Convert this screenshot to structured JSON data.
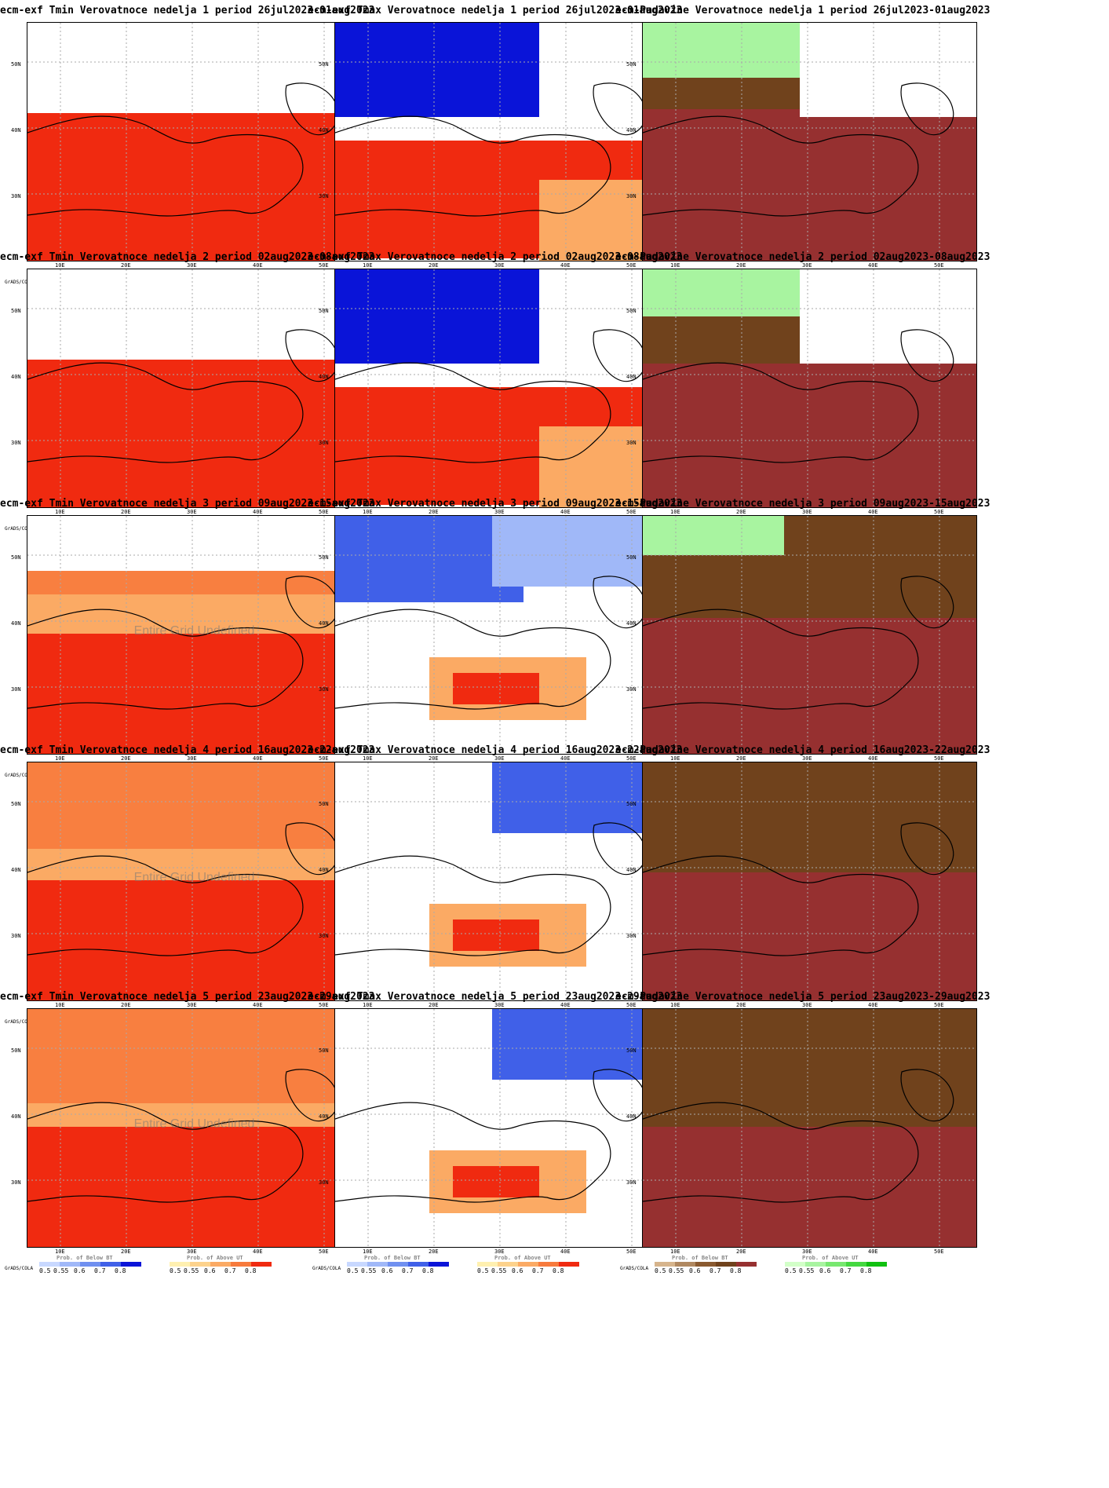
{
  "lat_labels": [
    "50N",
    "40N",
    "30N"
  ],
  "lon_labels": [
    "10E",
    "20E",
    "30E",
    "40E",
    "50E"
  ],
  "watermark_text": "Entire Grid Undefined",
  "grads_label": "GrADS/COLA",
  "scale_ticks": [
    "0.5",
    "0.55",
    "0.6",
    "0.7",
    "0.8"
  ],
  "legends": {
    "below": {
      "caption": "Prob. of Below BT",
      "colors": [
        "#c8d8ff",
        "#a0b8f8",
        "#7090f0",
        "#4060e8",
        "#0a14d8"
      ]
    },
    "above": {
      "caption": "Prob. of Above UT",
      "colors": [
        "#fff0b0",
        "#fdd28c",
        "#fbaa64",
        "#f77a3c",
        "#f02a10"
      ]
    },
    "dry": {
      "caption": "Prob. of Below BT",
      "colors": [
        "#d6b48c",
        "#b08860",
        "#8a5a30",
        "#70421c",
        "#963030"
      ]
    },
    "wet": {
      "caption": "Prob. of Above UT",
      "colors": [
        "#d2ffc8",
        "#a8f4a0",
        "#78e870",
        "#44d840",
        "#10c010"
      ]
    }
  },
  "rows": [
    {
      "week": 1,
      "tmin": {
        "title": "ecm-exf Tmin Verovatnoce nedelja 1 period 26jul2023-01aug2023",
        "legend_left": "below",
        "legend_right": "above",
        "watermark": false
      },
      "tmax": {
        "title": "ecm-exf Tmax Verovatnoce nedelja 1 period 26jul2023-01aug2023",
        "legend_left": "below",
        "legend_right": "above",
        "watermark": false
      },
      "precip": {
        "title": "ecm-Padavine Verovatnoce nedelja 1 period 26jul2023-01aug2023",
        "legend_left": "dry",
        "legend_right": "wet",
        "watermark": false
      }
    },
    {
      "week": 2,
      "tmin": {
        "title": "ecm-exf Tmin Verovatnoce nedelja 2 period 02aug2023-08aug2023",
        "legend_left": "below",
        "legend_right": "above",
        "watermark": false
      },
      "tmax": {
        "title": "ecm-exf Tmax Verovatnoce nedelja 2 period 02aug2023-08aug2023",
        "legend_left": "below",
        "legend_right": "above",
        "watermark": false
      },
      "precip": {
        "title": "ecm-Padavine Verovatnoce nedelja 2 period 02aug2023-08aug2023",
        "legend_left": "dry",
        "legend_right": "wet",
        "watermark": false
      }
    },
    {
      "week": 3,
      "tmin": {
        "title": "ecm-exf Tmin Verovatnoce nedelja 3 period 09aug2023-15aug2023",
        "legend_left": "below",
        "legend_right": "above",
        "watermark": true
      },
      "tmax": {
        "title": "ecm-exf Tmax Verovatnoce nedelja 3 period 09aug2023-15aug2023",
        "legend_left": "below",
        "legend_right": "above",
        "watermark": false
      },
      "precip": {
        "title": "ecm-Padavine Verovatnoce nedelja 3 period 09aug2023-15aug2023",
        "legend_left": "dry",
        "legend_right": "wet",
        "watermark": false
      }
    },
    {
      "week": 4,
      "tmin": {
        "title": "ecm-exf Tmin Verovatnoce nedelja 4 period 16aug2023-22aug2023",
        "legend_left": "below",
        "legend_right": "above",
        "watermark": true
      },
      "tmax": {
        "title": "ecm-exf Tmax Verovatnoce nedelja 4 period 16aug2023-22aug2023",
        "legend_left": "below",
        "legend_right": "above",
        "watermark": false
      },
      "precip": {
        "title": "ecm-Padavine Verovatnoce nedelja 4 period 16aug2023-22aug2023",
        "legend_left": "dry",
        "legend_right": "wet",
        "watermark": false
      }
    },
    {
      "week": 5,
      "tmin": {
        "title": "ecm-exf Tmin Verovatnoce nedelja 5 period 23aug2023-29aug2023",
        "legend_left": "below",
        "legend_right": "above",
        "watermark": true
      },
      "tmax": {
        "title": "ecm-exf Tmax Verovatnoce nedelja 5 period 23aug2023-29aug2023",
        "legend_left": "below",
        "legend_right": "above",
        "watermark": false
      },
      "precip": {
        "title": "ecm-Padavine Verovatnoce nedelja 5 period 23aug2023-29aug2023",
        "legend_left": "dry",
        "legend_right": "wet",
        "watermark": false
      }
    }
  ]
}
